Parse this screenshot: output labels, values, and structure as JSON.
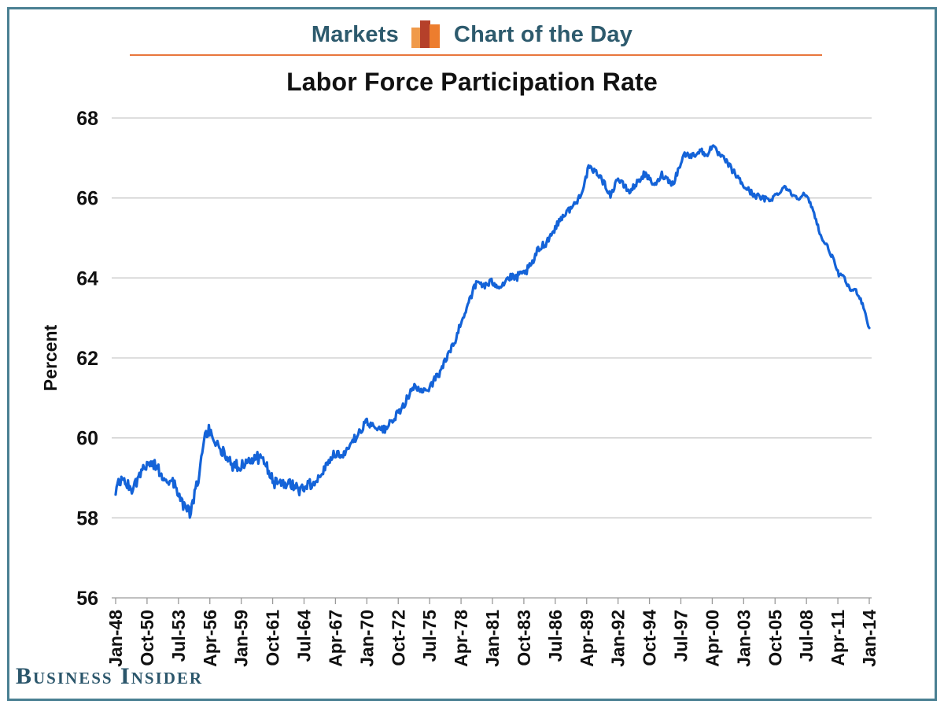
{
  "header": {
    "section_label": "Markets",
    "title": "Chart of the Day",
    "icon": "bar-chart-icon"
  },
  "footer": {
    "logo_text": "Business Insider"
  },
  "colors": {
    "accent_teal": "#2d5a6d",
    "border_teal": "#4a8093",
    "rule_orange": "#e8763c",
    "line_blue": "#1463d8",
    "grid_gray": "#c9c9c9",
    "axis_gray": "#9a9a9a",
    "logo_teal": "#2b566b",
    "icon_orange_light": "#f09a4a",
    "icon_red": "#b5402a",
    "icon_orange": "#ed7d2e"
  },
  "chart_data": {
    "type": "line",
    "title": "Labor Force Participation Rate",
    "xlabel": "",
    "ylabel": "Percent",
    "ylim": [
      56,
      68
    ],
    "yticks": [
      56,
      58,
      60,
      62,
      64,
      66,
      68
    ],
    "xtick_labels": [
      "Jan-48",
      "Oct-50",
      "Jul-53",
      "Apr-56",
      "Jan-59",
      "Oct-61",
      "Jul-64",
      "Apr-67",
      "Jan-70",
      "Oct-72",
      "Jul-75",
      "Apr-78",
      "Jan-81",
      "Oct-83",
      "Jul-86",
      "Apr-89",
      "Jan-92",
      "Oct-94",
      "Jul-97",
      "Apr-00",
      "Jan-03",
      "Oct-05",
      "Jul-08",
      "Apr-11",
      "Jan-14"
    ],
    "x_range_years": [
      1948.0,
      2014.0
    ],
    "grid": "horizontal",
    "legend": "none",
    "series": [
      {
        "name": "U.S. labor force participation rate (percent, monthly)",
        "sampling": "anchor points [decimal_year, percent] read from the plotted monthly line",
        "points": [
          [
            1948.0,
            58.7
          ],
          [
            1948.6,
            59.0
          ],
          [
            1949.3,
            58.7
          ],
          [
            1950.0,
            59.0
          ],
          [
            1950.8,
            59.4
          ],
          [
            1951.5,
            59.3
          ],
          [
            1952.3,
            59.0
          ],
          [
            1953.0,
            58.9
          ],
          [
            1953.8,
            58.4
          ],
          [
            1954.5,
            58.1
          ],
          [
            1955.2,
            58.9
          ],
          [
            1955.8,
            60.0
          ],
          [
            1956.2,
            60.2
          ],
          [
            1956.9,
            59.8
          ],
          [
            1957.6,
            59.6
          ],
          [
            1958.3,
            59.3
          ],
          [
            1959.0,
            59.3
          ],
          [
            1959.7,
            59.5
          ],
          [
            1960.4,
            59.5
          ],
          [
            1961.1,
            59.4
          ],
          [
            1961.8,
            58.9
          ],
          [
            1962.5,
            58.8
          ],
          [
            1963.2,
            58.9
          ],
          [
            1964.0,
            58.7
          ],
          [
            1964.7,
            58.8
          ],
          [
            1965.4,
            58.9
          ],
          [
            1966.0,
            59.1
          ],
          [
            1967.0,
            59.6
          ],
          [
            1968.0,
            59.6
          ],
          [
            1969.0,
            60.0
          ],
          [
            1970.0,
            60.4
          ],
          [
            1970.7,
            60.3
          ],
          [
            1971.5,
            60.2
          ],
          [
            1972.2,
            60.4
          ],
          [
            1973.0,
            60.7
          ],
          [
            1973.7,
            61.1
          ],
          [
            1974.3,
            61.3
          ],
          [
            1974.8,
            61.1
          ],
          [
            1975.5,
            61.3
          ],
          [
            1976.3,
            61.6
          ],
          [
            1977.0,
            62.0
          ],
          [
            1977.7,
            62.4
          ],
          [
            1978.4,
            63.0
          ],
          [
            1979.0,
            63.5
          ],
          [
            1979.7,
            63.9
          ],
          [
            1980.4,
            63.8
          ],
          [
            1981.0,
            63.9
          ],
          [
            1981.7,
            63.8
          ],
          [
            1982.4,
            64.0
          ],
          [
            1983.0,
            64.0
          ],
          [
            1983.7,
            64.1
          ],
          [
            1984.4,
            64.3
          ],
          [
            1985.0,
            64.7
          ],
          [
            1985.7,
            64.9
          ],
          [
            1986.4,
            65.2
          ],
          [
            1987.0,
            65.5
          ],
          [
            1987.7,
            65.7
          ],
          [
            1988.4,
            65.9
          ],
          [
            1989.0,
            66.3
          ],
          [
            1989.4,
            66.75
          ],
          [
            1990.3,
            66.6
          ],
          [
            1991.4,
            66.05
          ],
          [
            1991.9,
            66.5
          ],
          [
            1993.0,
            66.15
          ],
          [
            1994.3,
            66.6
          ],
          [
            1995.3,
            66.3
          ],
          [
            1995.8,
            66.6
          ],
          [
            1996.8,
            66.35
          ],
          [
            1997.8,
            67.1
          ],
          [
            1998.5,
            67.05
          ],
          [
            1999.2,
            67.2
          ],
          [
            1999.7,
            67.05
          ],
          [
            2000.2,
            67.3
          ],
          [
            2000.8,
            67.1
          ],
          [
            2001.5,
            66.9
          ],
          [
            2002.0,
            66.7
          ],
          [
            2003.0,
            66.3
          ],
          [
            2003.8,
            66.1
          ],
          [
            2004.5,
            66.0
          ],
          [
            2005.2,
            65.95
          ],
          [
            2006.0,
            66.1
          ],
          [
            2006.6,
            66.3
          ],
          [
            2007.2,
            66.1
          ],
          [
            2007.8,
            66.0
          ],
          [
            2008.3,
            66.1
          ],
          [
            2008.8,
            65.9
          ],
          [
            2009.3,
            65.5
          ],
          [
            2009.8,
            65.0
          ],
          [
            2010.3,
            64.8
          ],
          [
            2010.8,
            64.5
          ],
          [
            2011.3,
            64.1
          ],
          [
            2011.8,
            64.0
          ],
          [
            2012.3,
            63.7
          ],
          [
            2012.8,
            63.7
          ],
          [
            2013.2,
            63.5
          ],
          [
            2013.6,
            63.2
          ],
          [
            2013.85,
            62.85
          ],
          [
            2014.0,
            62.75
          ]
        ]
      }
    ]
  }
}
